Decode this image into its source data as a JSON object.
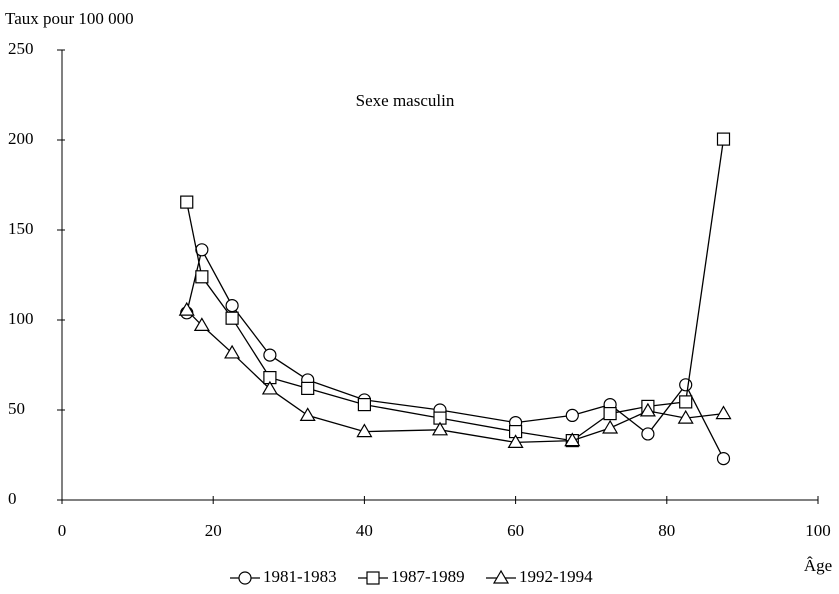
{
  "chart_data": {
    "type": "line",
    "title": "Sexe masculin",
    "y_label": "Taux pour 100 000",
    "x_label": "Âge",
    "xlim": [
      0,
      100
    ],
    "xticks": [
      0,
      20,
      40,
      60,
      80,
      100
    ],
    "ylim": [
      0,
      250
    ],
    "yticks": [
      0,
      50,
      100,
      150,
      200,
      250
    ],
    "legend": "bottom",
    "series": [
      {
        "name": "1981-1983",
        "color": "#000000",
        "marker": "circle",
        "x": [
          16.5,
          18.5,
          22.5,
          27.5,
          32.5,
          40,
          50,
          60,
          67.5,
          72.5,
          77.5,
          82.5,
          87.5
        ],
        "values": [
          104,
          139,
          108,
          80.5,
          66.7,
          55.6,
          50,
          43,
          47,
          53,
          36.7,
          64,
          23
        ]
      },
      {
        "name": "1987-1989",
        "color": "#000000",
        "marker": "square",
        "x": [
          16.5,
          18.5,
          22.5,
          27.5,
          32.5,
          40,
          50,
          60,
          67.5,
          72.5,
          77.5,
          82.5,
          87.5
        ],
        "values": [
          165.5,
          124,
          101,
          68,
          62,
          53,
          45.5,
          38,
          33,
          48,
          52,
          54.5,
          200.5
        ]
      },
      {
        "name": "1992-1994",
        "color": "#000000",
        "marker": "triangle",
        "x": [
          16.5,
          18.5,
          22.5,
          27.5,
          32.5,
          40,
          50,
          60,
          67.5,
          72.5,
          77.5,
          82.5,
          87.5
        ],
        "values": [
          105.5,
          97,
          81.7,
          61.7,
          47,
          38,
          39,
          32,
          33,
          40,
          49.5,
          45.5,
          48
        ]
      }
    ]
  }
}
